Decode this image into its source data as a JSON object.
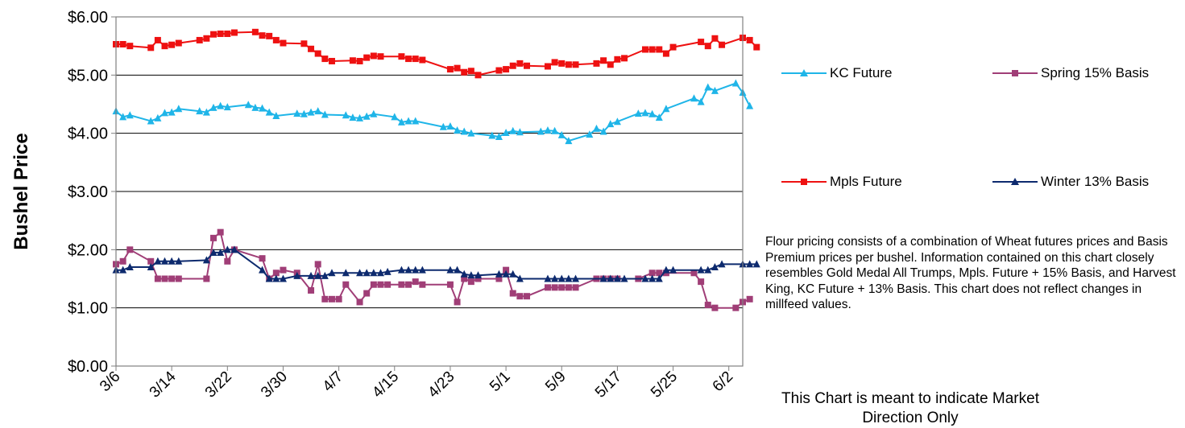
{
  "chart_data": {
    "type": "line",
    "ylabel": "Bushel Price",
    "xlabel": "",
    "ylim": [
      0,
      6
    ],
    "y_ticks": [
      "$0.00",
      "$1.00",
      "$2.00",
      "$3.00",
      "$4.00",
      "$5.00",
      "$6.00"
    ],
    "x_start": "3/6",
    "x_end": "6/4",
    "x_tick_labels": [
      "3/6",
      "3/14",
      "3/22",
      "3/30",
      "4/7",
      "4/15",
      "4/23",
      "5/1",
      "5/9",
      "5/17",
      "5/25",
      "6/2"
    ],
    "grid": "horizontal",
    "legend_position": "right",
    "series": [
      {
        "name": "KC Future",
        "color": "#1fb5e8",
        "marker": "triangle",
        "points": [
          [
            "3/6",
            4.38
          ],
          [
            "3/7",
            4.28
          ],
          [
            "3/8",
            4.31
          ],
          [
            "3/11",
            4.21
          ],
          [
            "3/12",
            4.26
          ],
          [
            "3/13",
            4.35
          ],
          [
            "3/14",
            4.36
          ],
          [
            "3/15",
            4.42
          ],
          [
            "3/18",
            4.38
          ],
          [
            "3/19",
            4.36
          ],
          [
            "3/20",
            4.44
          ],
          [
            "3/21",
            4.47
          ],
          [
            "3/22",
            4.45
          ],
          [
            "3/25",
            4.49
          ],
          [
            "3/26",
            4.44
          ],
          [
            "3/27",
            4.43
          ],
          [
            "3/28",
            4.36
          ],
          [
            "3/29",
            4.3
          ],
          [
            "4/1",
            4.34
          ],
          [
            "4/2",
            4.33
          ],
          [
            "4/3",
            4.36
          ],
          [
            "4/4",
            4.38
          ],
          [
            "4/5",
            4.32
          ],
          [
            "4/8",
            4.31
          ],
          [
            "4/9",
            4.27
          ],
          [
            "4/10",
            4.26
          ],
          [
            "4/11",
            4.29
          ],
          [
            "4/12",
            4.33
          ],
          [
            "4/15",
            4.28
          ],
          [
            "4/16",
            4.19
          ],
          [
            "4/17",
            4.21
          ],
          [
            "4/18",
            4.21
          ],
          [
            "4/22",
            4.11
          ],
          [
            "4/23",
            4.12
          ],
          [
            "4/24",
            4.05
          ],
          [
            "4/25",
            4.03
          ],
          [
            "4/26",
            4.0
          ],
          [
            "4/29",
            3.96
          ],
          [
            "4/30",
            3.94
          ],
          [
            "5/1",
            4.01
          ],
          [
            "5/2",
            4.04
          ],
          [
            "5/3",
            4.02
          ],
          [
            "5/6",
            4.03
          ],
          [
            "5/7",
            4.05
          ],
          [
            "5/8",
            4.04
          ],
          [
            "5/9",
            3.97
          ],
          [
            "5/10",
            3.87
          ],
          [
            "5/13",
            3.98
          ],
          [
            "5/14",
            4.08
          ],
          [
            "5/15",
            4.03
          ],
          [
            "5/16",
            4.16
          ],
          [
            "5/17",
            4.2
          ],
          [
            "5/20",
            4.34
          ],
          [
            "5/21",
            4.35
          ],
          [
            "5/22",
            4.33
          ],
          [
            "5/23",
            4.27
          ],
          [
            "5/24",
            4.42
          ],
          [
            "5/28",
            4.6
          ],
          [
            "5/29",
            4.54
          ],
          [
            "5/30",
            4.79
          ],
          [
            "5/31",
            4.73
          ],
          [
            "6/3",
            4.86
          ],
          [
            "6/4",
            4.7
          ],
          [
            "6/5",
            4.47
          ]
        ]
      },
      {
        "name": "Spring 15% Basis",
        "color": "#a03e77",
        "marker": "square",
        "points": [
          [
            "3/6",
            1.75
          ],
          [
            "3/7",
            1.8
          ],
          [
            "3/8",
            2.0
          ],
          [
            "3/11",
            1.8
          ],
          [
            "3/12",
            1.5
          ],
          [
            "3/13",
            1.5
          ],
          [
            "3/14",
            1.5
          ],
          [
            "3/15",
            1.5
          ],
          [
            "3/19",
            1.5
          ],
          [
            "3/20",
            2.2
          ],
          [
            "3/21",
            2.3
          ],
          [
            "3/22",
            1.8
          ],
          [
            "3/23",
            2.0
          ],
          [
            "3/27",
            1.85
          ],
          [
            "3/28",
            1.5
          ],
          [
            "3/29",
            1.6
          ],
          [
            "3/30",
            1.65
          ],
          [
            "4/1",
            1.6
          ],
          [
            "4/3",
            1.3
          ],
          [
            "4/4",
            1.75
          ],
          [
            "4/5",
            1.15
          ],
          [
            "4/6",
            1.15
          ],
          [
            "4/7",
            1.15
          ],
          [
            "4/8",
            1.4
          ],
          [
            "4/10",
            1.1
          ],
          [
            "4/11",
            1.25
          ],
          [
            "4/12",
            1.4
          ],
          [
            "4/13",
            1.4
          ],
          [
            "4/14",
            1.4
          ],
          [
            "4/16",
            1.4
          ],
          [
            "4/17",
            1.4
          ],
          [
            "4/18",
            1.45
          ],
          [
            "4/19",
            1.4
          ],
          [
            "4/23",
            1.4
          ],
          [
            "4/24",
            1.1
          ],
          [
            "4/25",
            1.5
          ],
          [
            "4/26",
            1.45
          ],
          [
            "4/27",
            1.5
          ],
          [
            "4/30",
            1.5
          ],
          [
            "5/1",
            1.65
          ],
          [
            "5/2",
            1.25
          ],
          [
            "5/3",
            1.2
          ],
          [
            "5/4",
            1.2
          ],
          [
            "5/7",
            1.35
          ],
          [
            "5/8",
            1.35
          ],
          [
            "5/9",
            1.35
          ],
          [
            "5/10",
            1.35
          ],
          [
            "5/11",
            1.35
          ],
          [
            "5/14",
            1.5
          ],
          [
            "5/15",
            1.5
          ],
          [
            "5/16",
            1.5
          ],
          [
            "5/17",
            1.5
          ],
          [
            "5/20",
            1.5
          ],
          [
            "5/22",
            1.6
          ],
          [
            "5/23",
            1.6
          ],
          [
            "5/24",
            1.6
          ],
          [
            "5/28",
            1.6
          ],
          [
            "5/29",
            1.45
          ],
          [
            "5/30",
            1.05
          ],
          [
            "5/31",
            1.0
          ],
          [
            "6/3",
            1.0
          ],
          [
            "6/4",
            1.1
          ],
          [
            "6/5",
            1.15
          ]
        ]
      },
      {
        "name": "Mpls Future",
        "color": "#ee1111",
        "marker": "square",
        "points": [
          [
            "3/6",
            5.53
          ],
          [
            "3/7",
            5.53
          ],
          [
            "3/8",
            5.5
          ],
          [
            "3/11",
            5.47
          ],
          [
            "3/12",
            5.6
          ],
          [
            "3/13",
            5.5
          ],
          [
            "3/14",
            5.52
          ],
          [
            "3/15",
            5.55
          ],
          [
            "3/18",
            5.6
          ],
          [
            "3/19",
            5.63
          ],
          [
            "3/20",
            5.7
          ],
          [
            "3/21",
            5.71
          ],
          [
            "3/22",
            5.71
          ],
          [
            "3/23",
            5.73
          ],
          [
            "3/26",
            5.74
          ],
          [
            "3/27",
            5.68
          ],
          [
            "3/28",
            5.67
          ],
          [
            "3/29",
            5.6
          ],
          [
            "3/30",
            5.55
          ],
          [
            "4/2",
            5.54
          ],
          [
            "4/3",
            5.45
          ],
          [
            "4/4",
            5.37
          ],
          [
            "4/5",
            5.28
          ],
          [
            "4/6",
            5.24
          ],
          [
            "4/9",
            5.25
          ],
          [
            "4/10",
            5.24
          ],
          [
            "4/11",
            5.3
          ],
          [
            "4/12",
            5.33
          ],
          [
            "4/13",
            5.32
          ],
          [
            "4/16",
            5.32
          ],
          [
            "4/17",
            5.28
          ],
          [
            "4/18",
            5.28
          ],
          [
            "4/19",
            5.26
          ],
          [
            "4/23",
            5.1
          ],
          [
            "4/24",
            5.12
          ],
          [
            "4/25",
            5.05
          ],
          [
            "4/26",
            5.07
          ],
          [
            "4/27",
            5.0
          ],
          [
            "4/30",
            5.08
          ],
          [
            "5/1",
            5.1
          ],
          [
            "5/2",
            5.16
          ],
          [
            "5/3",
            5.2
          ],
          [
            "5/4",
            5.16
          ],
          [
            "5/7",
            5.15
          ],
          [
            "5/8",
            5.22
          ],
          [
            "5/9",
            5.2
          ],
          [
            "5/10",
            5.18
          ],
          [
            "5/11",
            5.18
          ],
          [
            "5/14",
            5.2
          ],
          [
            "5/15",
            5.25
          ],
          [
            "5/16",
            5.18
          ],
          [
            "5/17",
            5.27
          ],
          [
            "5/18",
            5.29
          ],
          [
            "5/21",
            5.44
          ],
          [
            "5/22",
            5.44
          ],
          [
            "5/23",
            5.44
          ],
          [
            "5/24",
            5.37
          ],
          [
            "5/25",
            5.48
          ],
          [
            "5/29",
            5.57
          ],
          [
            "5/30",
            5.5
          ],
          [
            "5/31",
            5.63
          ],
          [
            "6/1",
            5.52
          ],
          [
            "6/4",
            5.64
          ],
          [
            "6/5",
            5.6
          ],
          [
            "6/6",
            5.48
          ]
        ]
      },
      {
        "name": "Winter 13% Basis",
        "color": "#0d2a6e",
        "marker": "triangle",
        "points": [
          [
            "3/6",
            1.65
          ],
          [
            "3/7",
            1.65
          ],
          [
            "3/8",
            1.7
          ],
          [
            "3/11",
            1.7
          ],
          [
            "3/12",
            1.8
          ],
          [
            "3/13",
            1.8
          ],
          [
            "3/14",
            1.8
          ],
          [
            "3/15",
            1.8
          ],
          [
            "3/19",
            1.82
          ],
          [
            "3/20",
            1.95
          ],
          [
            "3/21",
            1.95
          ],
          [
            "3/22",
            2.0
          ],
          [
            "3/23",
            2.0
          ],
          [
            "3/27",
            1.65
          ],
          [
            "3/28",
            1.5
          ],
          [
            "3/29",
            1.5
          ],
          [
            "3/30",
            1.5
          ],
          [
            "4/1",
            1.55
          ],
          [
            "4/3",
            1.55
          ],
          [
            "4/4",
            1.55
          ],
          [
            "4/5",
            1.55
          ],
          [
            "4/6",
            1.6
          ],
          [
            "4/8",
            1.6
          ],
          [
            "4/10",
            1.6
          ],
          [
            "4/11",
            1.6
          ],
          [
            "4/12",
            1.6
          ],
          [
            "4/13",
            1.6
          ],
          [
            "4/14",
            1.62
          ],
          [
            "4/16",
            1.65
          ],
          [
            "4/17",
            1.65
          ],
          [
            "4/18",
            1.65
          ],
          [
            "4/19",
            1.65
          ],
          [
            "4/23",
            1.65
          ],
          [
            "4/24",
            1.65
          ],
          [
            "4/25",
            1.58
          ],
          [
            "4/26",
            1.56
          ],
          [
            "4/27",
            1.56
          ],
          [
            "4/30",
            1.58
          ],
          [
            "5/1",
            1.58
          ],
          [
            "5/2",
            1.58
          ],
          [
            "5/3",
            1.5
          ],
          [
            "5/7",
            1.5
          ],
          [
            "5/8",
            1.5
          ],
          [
            "5/9",
            1.5
          ],
          [
            "5/10",
            1.5
          ],
          [
            "5/11",
            1.5
          ],
          [
            "5/15",
            1.5
          ],
          [
            "5/16",
            1.5
          ],
          [
            "5/17",
            1.5
          ],
          [
            "5/18",
            1.5
          ],
          [
            "5/21",
            1.5
          ],
          [
            "5/22",
            1.5
          ],
          [
            "5/23",
            1.5
          ],
          [
            "5/24",
            1.65
          ],
          [
            "5/25",
            1.65
          ],
          [
            "5/29",
            1.65
          ],
          [
            "5/30",
            1.65
          ],
          [
            "5/31",
            1.7
          ],
          [
            "6/1",
            1.75
          ],
          [
            "6/4",
            1.75
          ],
          [
            "6/5",
            1.75
          ],
          [
            "6/6",
            1.75
          ]
        ]
      }
    ]
  },
  "legend": [
    {
      "label": "KC Future",
      "color": "#1fb5e8",
      "marker": "triangle"
    },
    {
      "label": "Spring 15% Basis",
      "color": "#a03e77",
      "marker": "square"
    },
    {
      "label": "Mpls Future",
      "color": "#ee1111",
      "marker": "square"
    },
    {
      "label": "Winter 13% Basis",
      "color": "#0d2a6e",
      "marker": "triangle"
    }
  ],
  "note": "Flour pricing consists of a combination of Wheat futures prices and Basis Premium prices per bushel. Information contained on this chart closely resembles Gold Medal All Trumps, Mpls. Future + 15% Basis, and Harvest King, KC Future + 13% Basis. This chart does not reflect changes in millfeed values.",
  "disclaimer": "This Chart is meant to indicate Market Direction Only"
}
